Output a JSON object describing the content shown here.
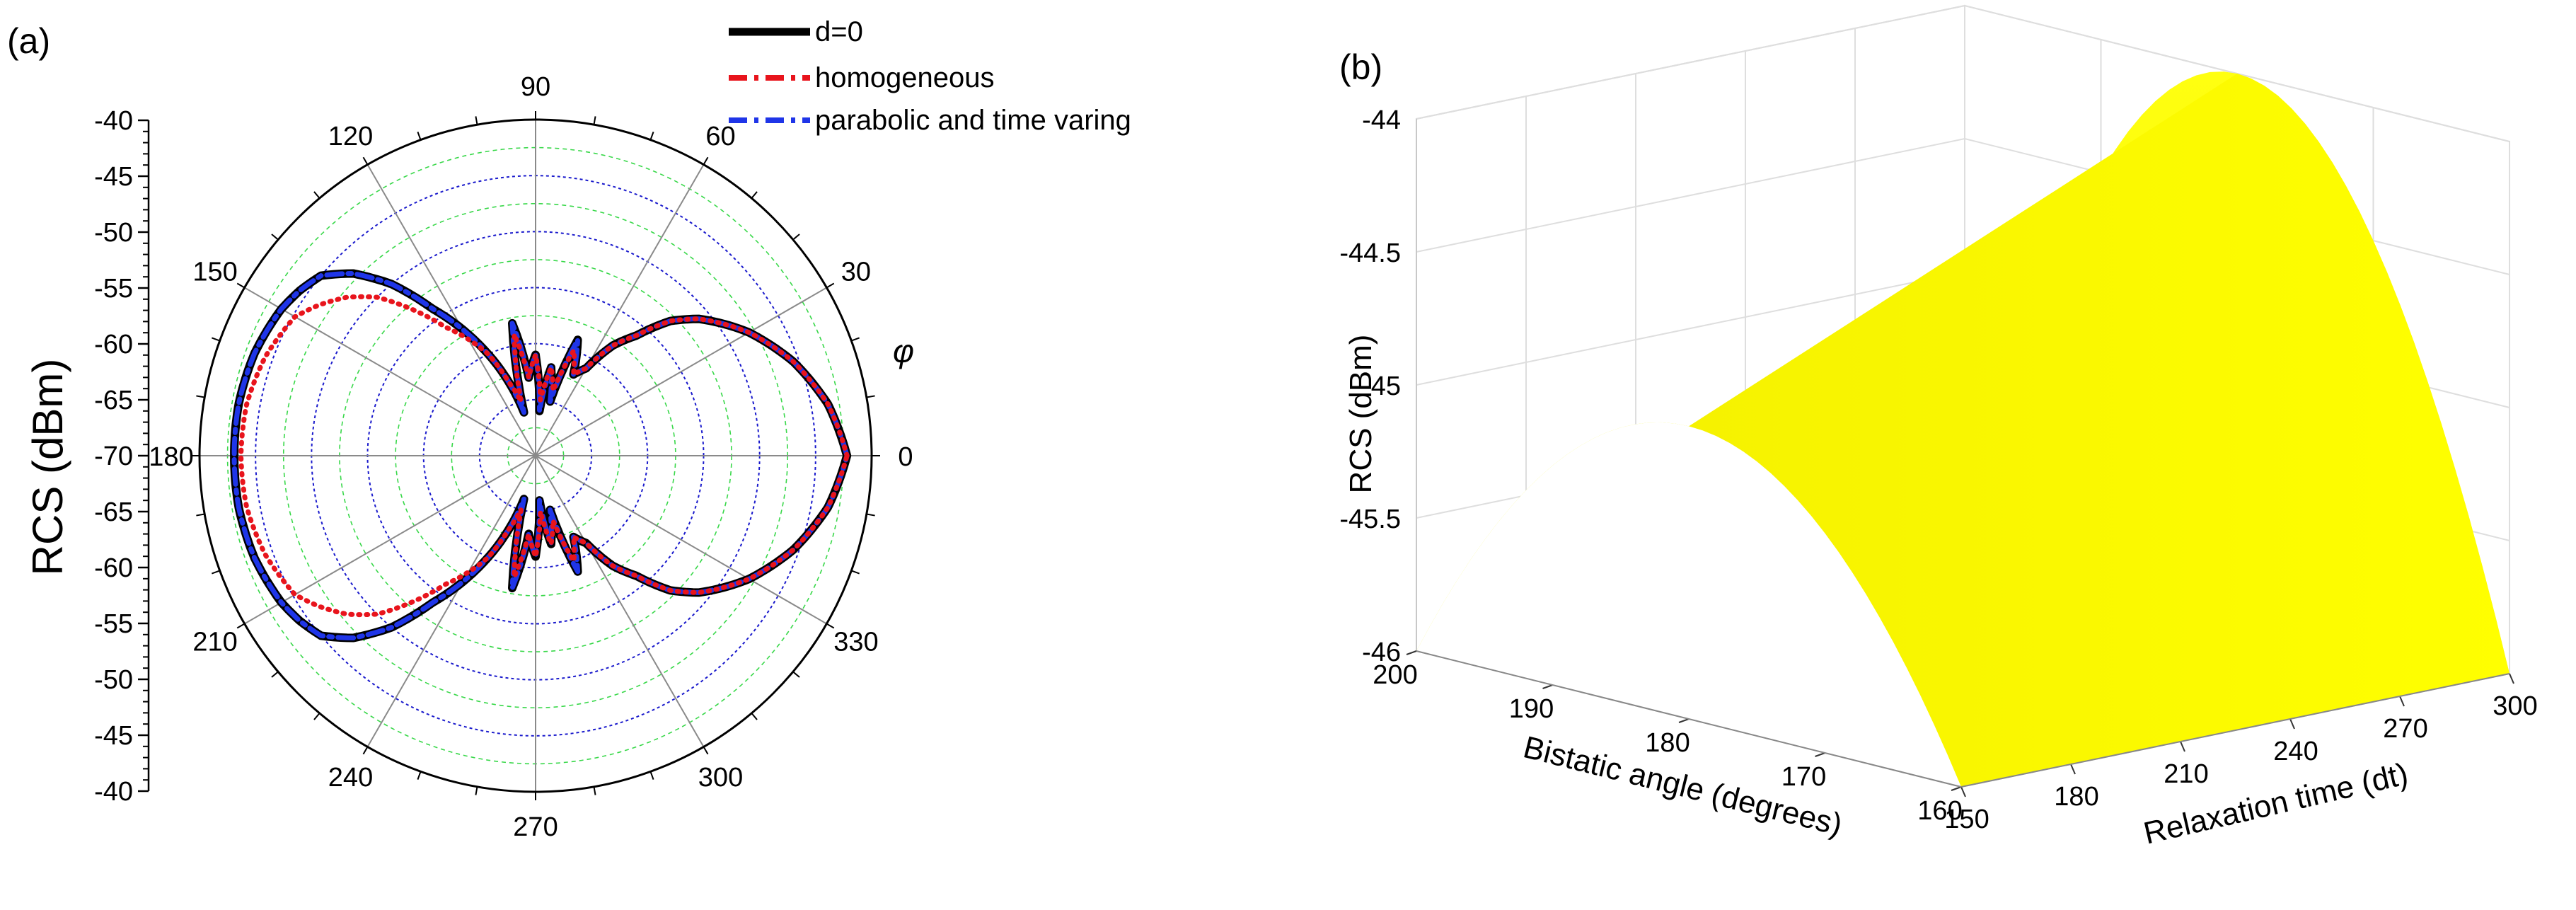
{
  "panel_a": {
    "label": "(a)",
    "ylabel": "RCS (dBm)",
    "phi_symbol": "φ",
    "chart_data": {
      "type": "line",
      "coordinate_system": "polar",
      "angle_unit": "degrees",
      "angle_ticks": [
        "90",
        "60",
        "30",
        "0",
        "330",
        "300",
        "270",
        "240",
        "210",
        "180",
        "150",
        "120"
      ],
      "radial_axis_ticks": [
        "-40",
        "-45",
        "-50",
        "-55",
        "-60",
        "-65",
        "-70",
        "-65",
        "-60",
        "-55",
        "-50",
        "-45",
        "-40"
      ],
      "radial_range": [
        -70,
        -40
      ],
      "legend": {
        "position": "top-right",
        "entries": [
          "d=0",
          "homogeneous",
          "parabolic and time varing"
        ]
      },
      "series": [
        {
          "name": "d=0",
          "color": "#000000",
          "style": "solid",
          "angles": [
            0,
            10,
            20,
            30,
            40,
            45,
            50,
            55,
            60,
            65,
            70,
            75,
            80,
            85,
            90,
            95,
            100,
            105,
            110,
            115,
            120,
            125,
            130,
            135,
            140,
            145,
            150,
            160,
            170,
            180
          ],
          "rcs_dbm": [
            -42.2,
            -43.5,
            -45.5,
            -48,
            -51,
            -53,
            -56,
            -58,
            -61,
            -62,
            -59,
            -65,
            -62,
            -66,
            -61,
            -63,
            -58,
            -66,
            -63,
            -60,
            -57,
            -54,
            -50,
            -47,
            -45,
            -44.3,
            -43.8,
            -43.3,
            -43.1,
            -43.1
          ]
        },
        {
          "name": "homogeneous",
          "color": "#e8141c",
          "style": "dash-dot",
          "angles": [
            0,
            10,
            20,
            30,
            40,
            45,
            50,
            55,
            60,
            65,
            70,
            75,
            80,
            85,
            90,
            95,
            100,
            105,
            110,
            115,
            120,
            125,
            130,
            135,
            140,
            145,
            150,
            160,
            170,
            180
          ],
          "rcs_dbm": [
            -42.2,
            -43.5,
            -45.5,
            -48,
            -51,
            -53,
            -56,
            -58,
            -61,
            -62,
            -60,
            -64,
            -62,
            -65,
            -61,
            -63,
            -59,
            -65,
            -63,
            -60,
            -58,
            -56,
            -53,
            -50,
            -48,
            -46.5,
            -45.2,
            -44.3,
            -43.8,
            -43.7
          ]
        },
        {
          "name": "parabolic and time varing",
          "color": "#1f35e8",
          "style": "dash-dot",
          "angles": [
            0,
            10,
            20,
            30,
            40,
            45,
            50,
            55,
            60,
            65,
            70,
            75,
            80,
            85,
            90,
            95,
            100,
            105,
            110,
            115,
            120,
            125,
            130,
            135,
            140,
            145,
            150,
            160,
            170,
            180
          ],
          "rcs_dbm": [
            -42.2,
            -43.5,
            -45.5,
            -48,
            -51,
            -53,
            -56,
            -58,
            -61,
            -62,
            -59,
            -65,
            -62,
            -66,
            -61,
            -63,
            -58,
            -66,
            -63,
            -60,
            -57,
            -54,
            -50,
            -47,
            -45,
            -44.3,
            -43.8,
            -43.3,
            -43.1,
            -43.1
          ]
        }
      ]
    }
  },
  "panel_b": {
    "label": "(b)",
    "chart_data": {
      "type": "surface",
      "zlabel": "RCS (dBm)",
      "xlabel": "Relaxation time (dt)",
      "ylabel": "Bistatic angle (degrees)",
      "zticks": [
        "-44",
        "-44.5",
        "-45",
        "-45.5",
        "-46"
      ],
      "xticks": [
        "150",
        "180",
        "210",
        "240",
        "270",
        "300"
      ],
      "yticks": [
        "200",
        "190",
        "180",
        "170",
        "160"
      ],
      "zlim": [
        -46,
        -44
      ],
      "xlim": [
        150,
        300
      ],
      "ylim": [
        160,
        200
      ],
      "surface_color": "#ffff00",
      "description_values": {
        "peak_rcs_at_300": -44.0,
        "peak_rcs_at_150": -44.9,
        "edge_rcs": -46.0,
        "peak_bistatic_angle": 180
      }
    }
  }
}
